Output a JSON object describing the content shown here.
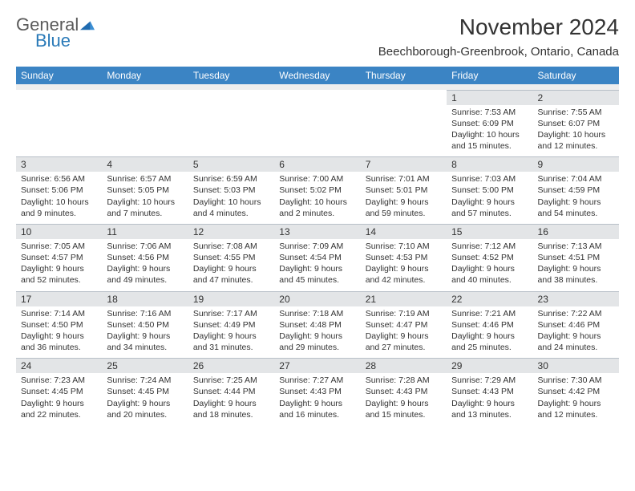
{
  "brand": {
    "word1": "General",
    "word2": "Blue"
  },
  "title": "November 2024",
  "location": "Beechborough-Greenbrook, Ontario, Canada",
  "colors": {
    "header_bg": "#3b84c4",
    "header_text": "#ffffff",
    "daynum_bg": "#e3e5e7",
    "spacer_bg": "#eeeeee",
    "text": "#333333",
    "logo_gray": "#5a5a5a",
    "logo_blue": "#2a7ab8"
  },
  "typography": {
    "title_fontsize": 28,
    "location_fontsize": 15,
    "dayhead_fontsize": 12,
    "body_fontsize": 10.5
  },
  "day_names": [
    "Sunday",
    "Monday",
    "Tuesday",
    "Wednesday",
    "Thursday",
    "Friday",
    "Saturday"
  ],
  "weeks": [
    [
      null,
      null,
      null,
      null,
      null,
      {
        "num": "1",
        "sunrise": "Sunrise: 7:53 AM",
        "sunset": "Sunset: 6:09 PM",
        "daylight1": "Daylight: 10 hours",
        "daylight2": "and 15 minutes."
      },
      {
        "num": "2",
        "sunrise": "Sunrise: 7:55 AM",
        "sunset": "Sunset: 6:07 PM",
        "daylight1": "Daylight: 10 hours",
        "daylight2": "and 12 minutes."
      }
    ],
    [
      {
        "num": "3",
        "sunrise": "Sunrise: 6:56 AM",
        "sunset": "Sunset: 5:06 PM",
        "daylight1": "Daylight: 10 hours",
        "daylight2": "and 9 minutes."
      },
      {
        "num": "4",
        "sunrise": "Sunrise: 6:57 AM",
        "sunset": "Sunset: 5:05 PM",
        "daylight1": "Daylight: 10 hours",
        "daylight2": "and 7 minutes."
      },
      {
        "num": "5",
        "sunrise": "Sunrise: 6:59 AM",
        "sunset": "Sunset: 5:03 PM",
        "daylight1": "Daylight: 10 hours",
        "daylight2": "and 4 minutes."
      },
      {
        "num": "6",
        "sunrise": "Sunrise: 7:00 AM",
        "sunset": "Sunset: 5:02 PM",
        "daylight1": "Daylight: 10 hours",
        "daylight2": "and 2 minutes."
      },
      {
        "num": "7",
        "sunrise": "Sunrise: 7:01 AM",
        "sunset": "Sunset: 5:01 PM",
        "daylight1": "Daylight: 9 hours",
        "daylight2": "and 59 minutes."
      },
      {
        "num": "8",
        "sunrise": "Sunrise: 7:03 AM",
        "sunset": "Sunset: 5:00 PM",
        "daylight1": "Daylight: 9 hours",
        "daylight2": "and 57 minutes."
      },
      {
        "num": "9",
        "sunrise": "Sunrise: 7:04 AM",
        "sunset": "Sunset: 4:59 PM",
        "daylight1": "Daylight: 9 hours",
        "daylight2": "and 54 minutes."
      }
    ],
    [
      {
        "num": "10",
        "sunrise": "Sunrise: 7:05 AM",
        "sunset": "Sunset: 4:57 PM",
        "daylight1": "Daylight: 9 hours",
        "daylight2": "and 52 minutes."
      },
      {
        "num": "11",
        "sunrise": "Sunrise: 7:06 AM",
        "sunset": "Sunset: 4:56 PM",
        "daylight1": "Daylight: 9 hours",
        "daylight2": "and 49 minutes."
      },
      {
        "num": "12",
        "sunrise": "Sunrise: 7:08 AM",
        "sunset": "Sunset: 4:55 PM",
        "daylight1": "Daylight: 9 hours",
        "daylight2": "and 47 minutes."
      },
      {
        "num": "13",
        "sunrise": "Sunrise: 7:09 AM",
        "sunset": "Sunset: 4:54 PM",
        "daylight1": "Daylight: 9 hours",
        "daylight2": "and 45 minutes."
      },
      {
        "num": "14",
        "sunrise": "Sunrise: 7:10 AM",
        "sunset": "Sunset: 4:53 PM",
        "daylight1": "Daylight: 9 hours",
        "daylight2": "and 42 minutes."
      },
      {
        "num": "15",
        "sunrise": "Sunrise: 7:12 AM",
        "sunset": "Sunset: 4:52 PM",
        "daylight1": "Daylight: 9 hours",
        "daylight2": "and 40 minutes."
      },
      {
        "num": "16",
        "sunrise": "Sunrise: 7:13 AM",
        "sunset": "Sunset: 4:51 PM",
        "daylight1": "Daylight: 9 hours",
        "daylight2": "and 38 minutes."
      }
    ],
    [
      {
        "num": "17",
        "sunrise": "Sunrise: 7:14 AM",
        "sunset": "Sunset: 4:50 PM",
        "daylight1": "Daylight: 9 hours",
        "daylight2": "and 36 minutes."
      },
      {
        "num": "18",
        "sunrise": "Sunrise: 7:16 AM",
        "sunset": "Sunset: 4:50 PM",
        "daylight1": "Daylight: 9 hours",
        "daylight2": "and 34 minutes."
      },
      {
        "num": "19",
        "sunrise": "Sunrise: 7:17 AM",
        "sunset": "Sunset: 4:49 PM",
        "daylight1": "Daylight: 9 hours",
        "daylight2": "and 31 minutes."
      },
      {
        "num": "20",
        "sunrise": "Sunrise: 7:18 AM",
        "sunset": "Sunset: 4:48 PM",
        "daylight1": "Daylight: 9 hours",
        "daylight2": "and 29 minutes."
      },
      {
        "num": "21",
        "sunrise": "Sunrise: 7:19 AM",
        "sunset": "Sunset: 4:47 PM",
        "daylight1": "Daylight: 9 hours",
        "daylight2": "and 27 minutes."
      },
      {
        "num": "22",
        "sunrise": "Sunrise: 7:21 AM",
        "sunset": "Sunset: 4:46 PM",
        "daylight1": "Daylight: 9 hours",
        "daylight2": "and 25 minutes."
      },
      {
        "num": "23",
        "sunrise": "Sunrise: 7:22 AM",
        "sunset": "Sunset: 4:46 PM",
        "daylight1": "Daylight: 9 hours",
        "daylight2": "and 24 minutes."
      }
    ],
    [
      {
        "num": "24",
        "sunrise": "Sunrise: 7:23 AM",
        "sunset": "Sunset: 4:45 PM",
        "daylight1": "Daylight: 9 hours",
        "daylight2": "and 22 minutes."
      },
      {
        "num": "25",
        "sunrise": "Sunrise: 7:24 AM",
        "sunset": "Sunset: 4:45 PM",
        "daylight1": "Daylight: 9 hours",
        "daylight2": "and 20 minutes."
      },
      {
        "num": "26",
        "sunrise": "Sunrise: 7:25 AM",
        "sunset": "Sunset: 4:44 PM",
        "daylight1": "Daylight: 9 hours",
        "daylight2": "and 18 minutes."
      },
      {
        "num": "27",
        "sunrise": "Sunrise: 7:27 AM",
        "sunset": "Sunset: 4:43 PM",
        "daylight1": "Daylight: 9 hours",
        "daylight2": "and 16 minutes."
      },
      {
        "num": "28",
        "sunrise": "Sunrise: 7:28 AM",
        "sunset": "Sunset: 4:43 PM",
        "daylight1": "Daylight: 9 hours",
        "daylight2": "and 15 minutes."
      },
      {
        "num": "29",
        "sunrise": "Sunrise: 7:29 AM",
        "sunset": "Sunset: 4:43 PM",
        "daylight1": "Daylight: 9 hours",
        "daylight2": "and 13 minutes."
      },
      {
        "num": "30",
        "sunrise": "Sunrise: 7:30 AM",
        "sunset": "Sunset: 4:42 PM",
        "daylight1": "Daylight: 9 hours",
        "daylight2": "and 12 minutes."
      }
    ]
  ]
}
